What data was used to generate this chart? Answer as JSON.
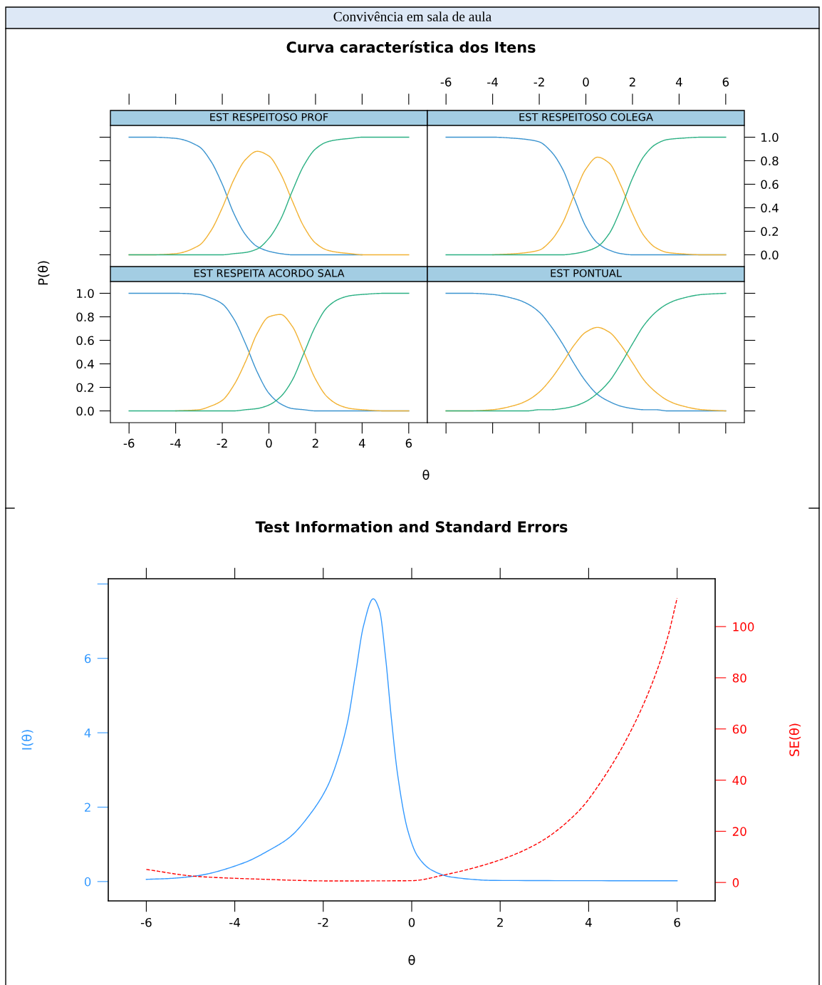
{
  "chart_data": [
    {
      "type": "line",
      "title": "EST RESPEITOSO PROF",
      "annotations": [
        "Convivência em sala de aula",
        "Curva característica dos Itens"
      ],
      "tick_labels": false,
      "xlim": [
        -6.8,
        6.8
      ],
      "ylim": [
        -0.1,
        1.1
      ],
      "xticks": [
        -6,
        -4,
        -2,
        0,
        2,
        4,
        6
      ],
      "yticks": [
        0.0,
        0.2,
        0.4,
        0.6,
        0.8,
        1.0
      ],
      "x": [
        -6,
        -5,
        -4,
        -3,
        -2.5,
        -2,
        -1.5,
        -1,
        -0.5,
        0,
        0.5,
        1,
        1.5,
        2,
        2.5,
        3,
        3.5,
        4,
        5,
        6
      ],
      "series": [
        {
          "color": "#3a93cf",
          "values": [
            1.0,
            1.0,
            0.99,
            0.92,
            0.8,
            0.6,
            0.35,
            0.17,
            0.07,
            0.03,
            0.01,
            0,
            0,
            0,
            0,
            0,
            0,
            0,
            null,
            null
          ]
        },
        {
          "color": "#f2b233",
          "values": [
            0,
            0,
            0.01,
            0.08,
            0.2,
            0.4,
            0.64,
            0.81,
            0.88,
            0.84,
            0.69,
            0.46,
            0.24,
            0.1,
            0.04,
            0.02,
            0.01,
            0,
            0,
            0
          ]
        },
        {
          "color": "#2bb083",
          "values": [
            0,
            0,
            0,
            0,
            0,
            0,
            0.01,
            0.02,
            0.05,
            0.14,
            0.3,
            0.54,
            0.76,
            0.9,
            0.96,
            0.98,
            0.99,
            1.0,
            1.0,
            1.0
          ]
        }
      ]
    },
    {
      "type": "line",
      "title": "EST RESPEITOSO COLEGA",
      "xlim": [
        -6.8,
        6.8
      ],
      "ylim": [
        -0.1,
        1.1
      ],
      "xticks": [
        -6,
        -4,
        -2,
        0,
        2,
        4,
        6
      ],
      "yticks": [
        {
          "value": 0,
          "label": "0.0"
        },
        0.2,
        0.4,
        0.6,
        0.8,
        {
          "value": 1,
          "label": "1.0"
        }
      ],
      "x": [
        -6,
        -5,
        -4,
        -3,
        -2.5,
        -2,
        -1.5,
        -1,
        -0.5,
        0,
        0.5,
        1,
        1.5,
        2,
        2.5,
        3,
        3.5,
        4,
        5,
        6
      ],
      "series": [
        {
          "color": "#3a93cf",
          "values": [
            1.0,
            1.0,
            1.0,
            0.99,
            0.98,
            0.96,
            0.88,
            0.73,
            0.48,
            0.24,
            0.1,
            0.04,
            0.01,
            0,
            0,
            0,
            0,
            0,
            0,
            0
          ]
        },
        {
          "color": "#f2b233",
          "values": [
            null,
            null,
            0,
            0.01,
            0.02,
            0.04,
            0.12,
            0.27,
            0.51,
            0.73,
            0.83,
            0.78,
            0.59,
            0.35,
            0.16,
            0.06,
            0.02,
            0.01,
            0,
            0
          ]
        },
        {
          "color": "#2bb083",
          "values": [
            0,
            0,
            0,
            0,
            0,
            0,
            0,
            0,
            0.01,
            0.03,
            0.07,
            0.18,
            0.39,
            0.65,
            0.84,
            0.94,
            0.98,
            0.99,
            1.0,
            1.0
          ]
        }
      ]
    },
    {
      "type": "line",
      "title": "EST RESPEITA ACORDO SALA",
      "xlabel": "θ",
      "ylabel": "P(θ)",
      "xlim": [
        -6.8,
        6.8
      ],
      "ylim": [
        -0.1,
        1.1
      ],
      "xticks": [
        -6,
        -4,
        -2,
        0,
        2,
        4,
        6
      ],
      "yticks": [
        {
          "value": 0,
          "label": "0.0"
        },
        0.2,
        0.4,
        0.6,
        0.8,
        {
          "value": 1,
          "label": "1.0"
        }
      ],
      "x": [
        -6,
        -5,
        -4,
        -3,
        -2.5,
        -2,
        -1.5,
        -1,
        -0.5,
        0,
        0.5,
        1,
        1.5,
        2,
        2.5,
        3,
        3.5,
        4,
        5,
        6
      ],
      "series": [
        {
          "color": "#3a93cf",
          "values": [
            1.0,
            1.0,
            1.0,
            0.99,
            0.96,
            0.91,
            0.78,
            0.57,
            0.33,
            0.15,
            0.06,
            0.02,
            0.01,
            0,
            0,
            0,
            0,
            0,
            0,
            0
          ]
        },
        {
          "color": "#f2b233",
          "values": [
            null,
            null,
            0,
            0.01,
            0.04,
            0.09,
            0.22,
            0.42,
            0.66,
            0.8,
            0.82,
            0.72,
            0.5,
            0.27,
            0.12,
            0.05,
            0.02,
            0.01,
            0,
            0
          ]
        },
        {
          "color": "#2bb083",
          "values": [
            0,
            0,
            0,
            0,
            0,
            0,
            0,
            0.01,
            0.02,
            0.05,
            0.12,
            0.26,
            0.49,
            0.72,
            0.88,
            0.95,
            0.98,
            0.99,
            1.0,
            1.0
          ]
        }
      ]
    },
    {
      "type": "line",
      "title": "EST PONTUAL",
      "tick_labels": false,
      "xlim": [
        -6.8,
        6.8
      ],
      "ylim": [
        -0.1,
        1.1
      ],
      "xticks": [
        -6,
        -4,
        -2,
        0,
        2,
        4,
        6
      ],
      "yticks": [
        0.0,
        0.2,
        0.4,
        0.6,
        0.8,
        1.0
      ],
      "x": [
        -6,
        -5,
        -4,
        -3,
        -2.5,
        -2,
        -1.5,
        -1,
        -0.5,
        0,
        0.5,
        1,
        1.5,
        2,
        2.5,
        3,
        3.5,
        4,
        5,
        6
      ],
      "series": [
        {
          "color": "#3a93cf",
          "values": [
            1.0,
            1.0,
            0.99,
            0.95,
            0.91,
            0.84,
            0.72,
            0.57,
            0.4,
            0.25,
            0.14,
            0.08,
            0.04,
            0.02,
            0.01,
            0.01,
            0,
            0,
            0,
            0
          ]
        },
        {
          "color": "#f2b233",
          "values": [
            0,
            0,
            0.01,
            0.05,
            0.09,
            0.16,
            0.27,
            0.41,
            0.56,
            0.67,
            0.71,
            0.67,
            0.56,
            0.41,
            0.26,
            0.16,
            0.09,
            0.05,
            0.01,
            0
          ]
        },
        {
          "color": "#2bb083",
          "values": [
            0,
            0,
            0,
            0,
            0,
            0.01,
            0.01,
            0.02,
            0.04,
            0.08,
            0.15,
            0.25,
            0.4,
            0.57,
            0.73,
            0.84,
            0.91,
            0.95,
            0.99,
            1.0
          ]
        }
      ]
    },
    {
      "type": "line",
      "title": "Test Information and Standard Errors",
      "xlabel": "θ",
      "ylabel": "I(θ)",
      "y2label": "SE(θ)",
      "xlim": [
        -6.86,
        6.86
      ],
      "ylim": [
        -0.52,
        8.14
      ],
      "y2lim": [
        -7.2,
        118.7
      ],
      "xticks": [
        -6,
        -4,
        -2,
        0,
        2,
        4,
        6
      ],
      "yticks": [
        0,
        2,
        4,
        6,
        {
          "value": 8,
          "label": null
        }
      ],
      "y2ticks": [
        0,
        20,
        40,
        60,
        80,
        100
      ],
      "series": [
        {
          "color": "#3399ff",
          "line_style": "solid",
          "x": [
            -6,
            -5.52,
            -4.88,
            -3.8,
            -3.21,
            -2.76,
            -2.26,
            -1.9,
            -1.68,
            -1.45,
            -1.27,
            -1.09,
            -0.87,
            -0.73,
            -0.59,
            -0.46,
            -0.32,
            -0.09,
            0.13,
            0.45,
            0.9,
            1.89,
            6.0
          ],
          "values": [
            0.06,
            0.08,
            0.15,
            0.5,
            0.85,
            1.19,
            1.87,
            2.57,
            3.26,
            4.29,
            5.58,
            6.87,
            7.6,
            7.3,
            6.01,
            4.39,
            2.89,
            1.38,
            0.69,
            0.31,
            0.12,
            0.03,
            0.02
          ]
        },
        {
          "color": "#ff0000",
          "axis": "y2",
          "line_style": "dashed",
          "x": [
            -6,
            -4.88,
            -3.44,
            -1.81,
            0,
            0.72,
            1.98,
            2.89,
            3.79,
            4.33,
            4.87,
            5.41,
            5.78,
            6.0
          ],
          "values": [
            5.1,
            2.4,
            1.3,
            0.6,
            0.7,
            2.9,
            8.7,
            15.7,
            28.2,
            40.7,
            56.4,
            76.7,
            95.4,
            111.1
          ]
        }
      ]
    }
  ]
}
